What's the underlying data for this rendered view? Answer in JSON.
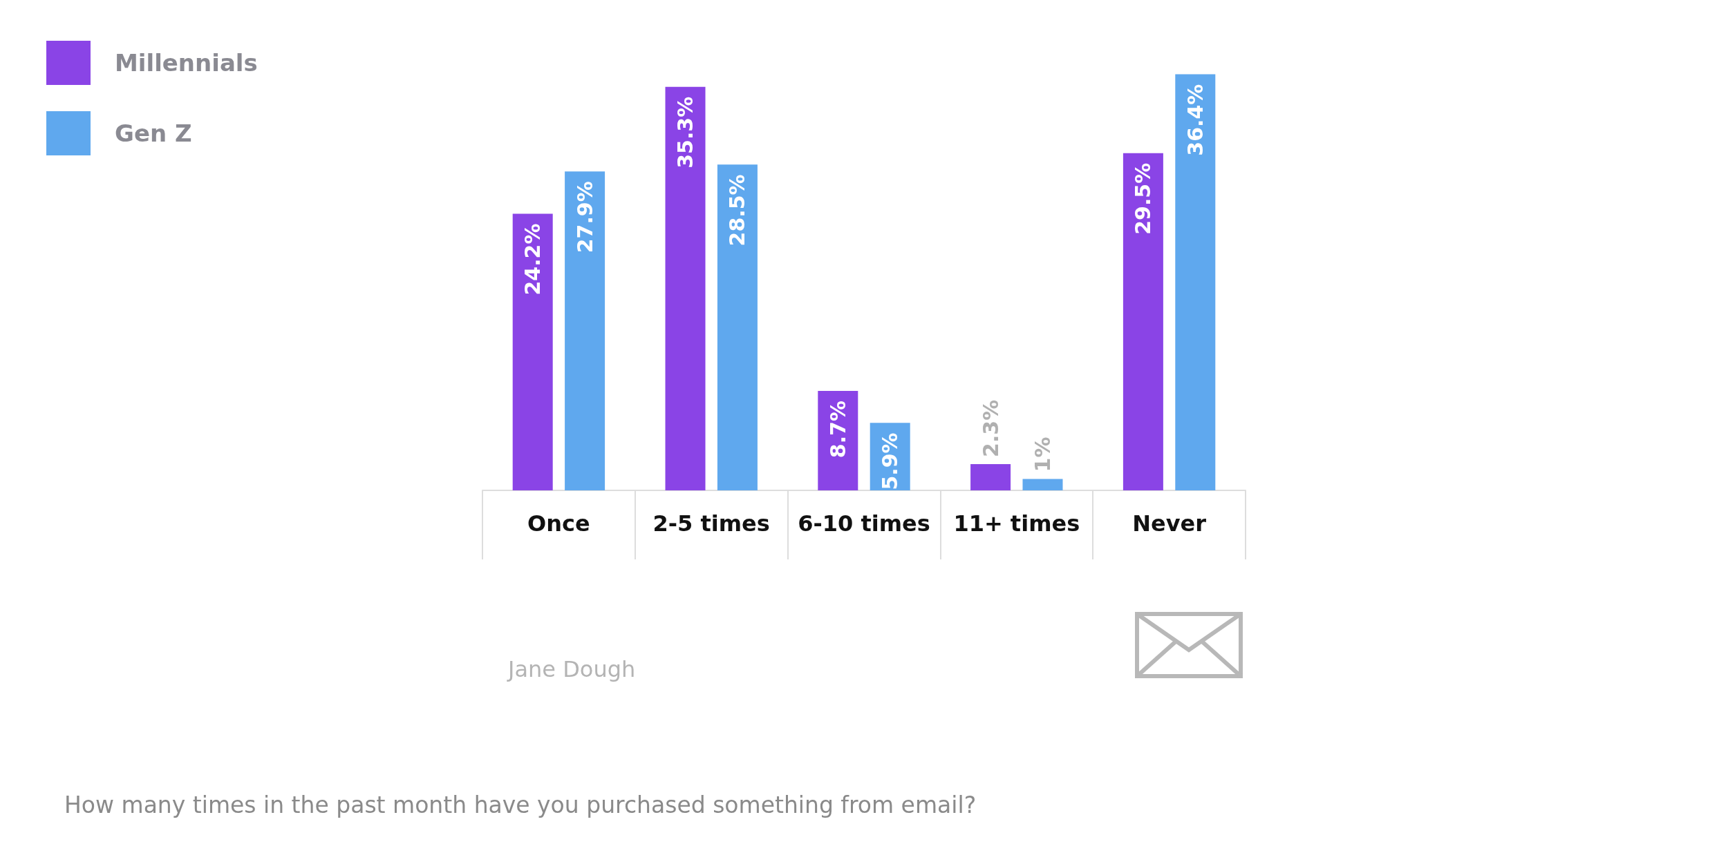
{
  "chart_data": {
    "type": "bar",
    "title": "How many times in the past month have you purchased something from email?",
    "categories": [
      "Once",
      "2-5 times",
      "6-10 times",
      "11+ times",
      "Never"
    ],
    "series": [
      {
        "name": "Millennials",
        "color": "#8a44e6",
        "values": [
          24.2,
          35.3,
          8.7,
          2.3,
          29.5
        ],
        "value_labels": [
          "24.2%",
          "35.3%",
          "8.7%",
          "2.3%",
          "29.5%"
        ]
      },
      {
        "name": "Gen Z",
        "color": "#5fa8ee",
        "values": [
          27.9,
          28.5,
          5.9,
          1,
          36.4
        ],
        "value_labels": [
          "27.9%",
          "28.5%",
          "5.9%",
          "1%",
          "36.4%"
        ]
      }
    ],
    "legend": "top left",
    "annotations": [
      "Jane Dough"
    ]
  }
}
